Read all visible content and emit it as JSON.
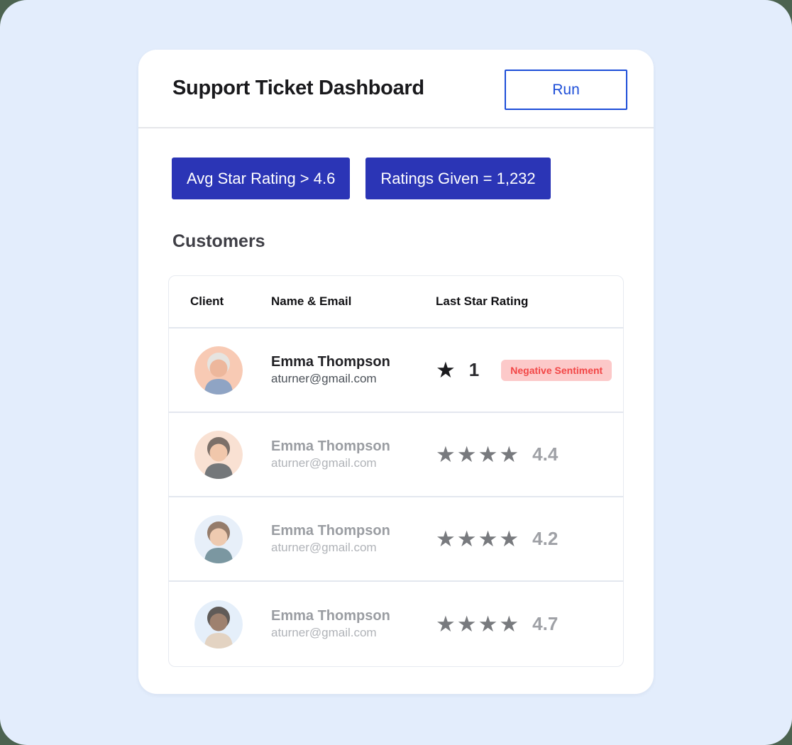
{
  "page": {
    "outer_bg": "#4c6350",
    "panel_bg": "#e3edfc"
  },
  "header": {
    "title": "Support Ticket Dashboard",
    "run_label": "Run",
    "accent_blue": "#1d4ed8"
  },
  "filters": {
    "bg_color": "#2b35b6",
    "items": [
      {
        "label": "Avg Star Rating > 4.6"
      },
      {
        "label": "Ratings Given = 1,232"
      }
    ]
  },
  "customers": {
    "heading": "Customers",
    "columns": [
      "Client",
      "Name & Email",
      "Last Star Rating"
    ],
    "sentiment_colors": {
      "bg": "#fcc9c9",
      "fg": "#f24646"
    },
    "star_glyph": "★",
    "rows": [
      {
        "name": "Emma Thompson",
        "email": "aturner@gmail.com",
        "stars": 1,
        "rating": "1",
        "sentiment": "Negative Sentiment",
        "muted": false,
        "avatar": {
          "bg": "#f8cab4",
          "skin": "#edb79c",
          "hair": "#e6e4e0",
          "shirt": "#8fa4c4"
        }
      },
      {
        "name": "Emma Thompson",
        "email": "aturner@gmail.com",
        "stars": 4,
        "rating": "4.4",
        "sentiment": null,
        "muted": true,
        "avatar": {
          "bg": "#f8d6c3",
          "skin": "#edb28c",
          "hair": "#4a3a30",
          "shirt": "#3f4347"
        }
      },
      {
        "name": "Emma Thompson",
        "email": "aturner@gmail.com",
        "stars": 4,
        "rating": "4.2",
        "sentiment": null,
        "muted": true,
        "avatar": {
          "bg": "#dfeaf8",
          "skin": "#e8b793",
          "hair": "#6d4a33",
          "shirt": "#49707e"
        }
      },
      {
        "name": "Emma Thompson",
        "email": "aturner@gmail.com",
        "stars": 4,
        "rating": "4.7",
        "sentiment": null,
        "muted": true,
        "avatar": {
          "bg": "#dce9f9",
          "skin": "#7a5239",
          "hair": "#241d18",
          "shirt": "#d9c3ab"
        }
      }
    ]
  }
}
